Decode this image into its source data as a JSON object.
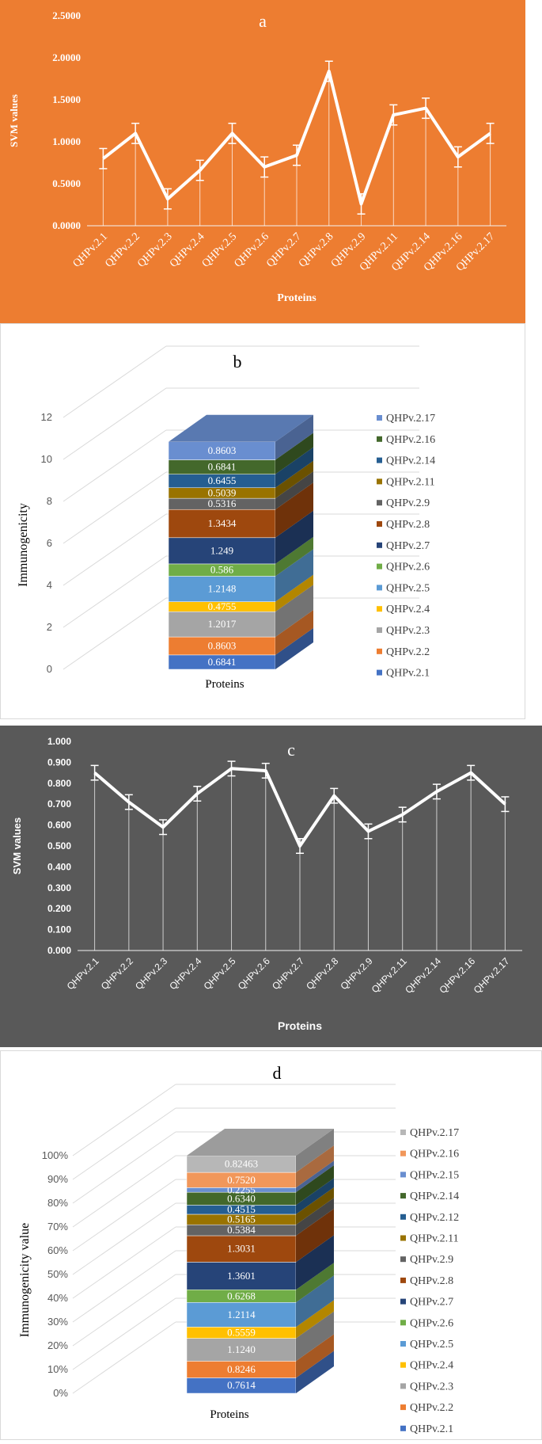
{
  "chart_data": [
    {
      "panel": "a",
      "type": "line",
      "title": "a",
      "xlabel": "Proteins",
      "ylabel": "SVM values",
      "categories": [
        "QHPv.2.1",
        "QHPv.2.2",
        "QHPv.2.3",
        "QHPv.2.4",
        "QHPv.2.5",
        "QHPv.2.6",
        "QHPv.2.7",
        "QHPv.2.8",
        "QHPv.2.9",
        "QHPv.2.11",
        "QHPv.2.14",
        "QHPv.2.16",
        "QHPv.2.17"
      ],
      "values": [
        0.8,
        1.1,
        0.32,
        0.66,
        1.1,
        0.7,
        0.84,
        1.84,
        0.26,
        1.32,
        1.4,
        0.82,
        1.1
      ],
      "ylim": [
        0,
        2.5
      ],
      "yticks": [
        "0.0000",
        "0.5000",
        "1.0000",
        "1.5000",
        "2.0000",
        "2.5000"
      ],
      "colors": {
        "background": "#ED7D31",
        "line": "#FFFFFF"
      }
    },
    {
      "panel": "b",
      "type": "bar",
      "stacked": true,
      "title": "b",
      "xlabel": "Proteins",
      "ylabel": "Immunogenicity",
      "ylim": [
        0,
        12
      ],
      "yticks": [
        "0",
        "2",
        "4",
        "6",
        "8",
        "10",
        "12"
      ],
      "legend_position": "right",
      "series": [
        {
          "name": "QHPv.2.1",
          "value": 0.6841,
          "label": "0.6841",
          "color": "#4472C4"
        },
        {
          "name": "QHPv.2.2",
          "value": 0.8603,
          "label": "0.8603",
          "color": "#ED7D31"
        },
        {
          "name": "QHPv.2.3",
          "value": 1.2017,
          "label": "1.2017",
          "color": "#A5A5A5"
        },
        {
          "name": "QHPv.2.4",
          "value": 0.4755,
          "label": "0.4755",
          "color": "#FFC000"
        },
        {
          "name": "QHPv.2.5",
          "value": 1.2148,
          "label": "1.2148",
          "color": "#5B9BD5"
        },
        {
          "name": "QHPv.2.6",
          "value": 0.586,
          "label": "0.586",
          "color": "#70AD47"
        },
        {
          "name": "QHPv.2.7",
          "value": 1.249,
          "label": "1.249",
          "color": "#264478"
        },
        {
          "name": "QHPv.2.8",
          "value": 1.3434,
          "label": "1.3434",
          "color": "#9E480E"
        },
        {
          "name": "QHPv.2.9",
          "value": 0.5316,
          "label": "0.5316",
          "color": "#636363"
        },
        {
          "name": "QHPv.2.11",
          "value": 0.5039,
          "label": "0.5039",
          "color": "#997300"
        },
        {
          "name": "QHPv.2.14",
          "value": 0.6455,
          "label": "0.6455",
          "color": "#255E91"
        },
        {
          "name": "QHPv.2.16",
          "value": 0.6841,
          "label": "0.6841",
          "color": "#43682B"
        },
        {
          "name": "QHPv.2.17",
          "value": 0.8603,
          "label": "0.8603",
          "color": "#698ED0"
        }
      ]
    },
    {
      "panel": "c",
      "type": "line",
      "title": "c",
      "xlabel": "Proteins",
      "ylabel": "SVM values",
      "categories": [
        "QHPv.2.1",
        "QHPv.2.2",
        "QHPv.2.3",
        "QHPv.2.4",
        "QHPv.2.5",
        "QHPv.2.6",
        "QHPv.2.7",
        "QHPv.2.8",
        "QHPv.2.9",
        "QHPv.2.11",
        "QHPv.2.14",
        "QHPv.2.16",
        "QHPv.2.17"
      ],
      "values": [
        0.85,
        0.71,
        0.59,
        0.75,
        0.87,
        0.86,
        0.5,
        0.74,
        0.57,
        0.65,
        0.76,
        0.85,
        0.7
      ],
      "ylim": [
        0,
        1.0
      ],
      "yticks": [
        "0.000",
        "0.100",
        "0.200",
        "0.300",
        "0.400",
        "0.500",
        "0.600",
        "0.700",
        "0.800",
        "0.900",
        "1.000"
      ],
      "colors": {
        "background": "#595959",
        "line": "#FFFFFF"
      }
    },
    {
      "panel": "d",
      "type": "bar",
      "stacked": true,
      "percent": true,
      "title": "d",
      "xlabel": "Proteins",
      "ylabel": "Immunogenicity value",
      "yticks": [
        "0%",
        "10%",
        "20%",
        "30%",
        "40%",
        "50%",
        "60%",
        "70%",
        "80%",
        "90%",
        "100%"
      ],
      "legend_position": "right",
      "series": [
        {
          "name": "QHPv.2.1",
          "value": 0.7614,
          "label": "0.7614",
          "color": "#4472C4"
        },
        {
          "name": "QHPv.2.2",
          "value": 0.8246,
          "label": "0.8246",
          "color": "#ED7D31"
        },
        {
          "name": "QHPv.2.3",
          "value": 1.124,
          "label": "1.1240",
          "color": "#A5A5A5"
        },
        {
          "name": "QHPv.2.4",
          "value": 0.5559,
          "label": "0.5559",
          "color": "#FFC000"
        },
        {
          "name": "QHPv.2.5",
          "value": 1.2114,
          "label": "1.2114",
          "color": "#5B9BD5"
        },
        {
          "name": "QHPv.2.6",
          "value": 0.6268,
          "label": "0.6268",
          "color": "#70AD47"
        },
        {
          "name": "QHPv.2.7",
          "value": 1.3601,
          "label": "1.3601",
          "color": "#264478"
        },
        {
          "name": "QHPv.2.8",
          "value": 1.3031,
          "label": "1.3031",
          "color": "#9E480E"
        },
        {
          "name": "QHPv.2.9",
          "value": 0.5384,
          "label": "0.5384",
          "color": "#636363"
        },
        {
          "name": "QHPv.2.11",
          "value": 0.5165,
          "label": "0.5165",
          "color": "#997300"
        },
        {
          "name": "QHPv.2.12",
          "value": 0.4515,
          "label": "0.4515",
          "color": "#255E91"
        },
        {
          "name": "QHPv.2.14",
          "value": 0.634,
          "label": "0.6340",
          "color": "#43682B"
        },
        {
          "name": "QHPv.2.15",
          "value": 0.2255,
          "label": "0.2255",
          "color": "#698ED0"
        },
        {
          "name": "QHPv.2.16",
          "value": 0.752,
          "label": "0.7520",
          "color": "#F1975A"
        },
        {
          "name": "QHPv.2.17",
          "value": 0.82463,
          "label": "0.82463",
          "color": "#B7B7B7"
        }
      ]
    }
  ]
}
